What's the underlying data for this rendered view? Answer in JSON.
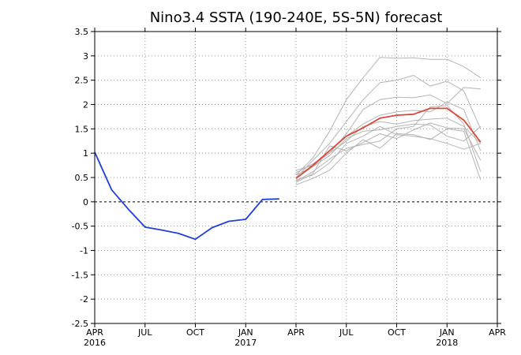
{
  "chart_data": {
    "type": "line",
    "title": "Nino3.4 SSTA (190-240E, 5S-5N) forecast",
    "xlabel": "",
    "ylabel": "",
    "ylim": [
      -2.5,
      3.5
    ],
    "yticks": [
      3.5,
      3,
      2.5,
      2,
      1.5,
      1,
      0.5,
      0,
      -0.5,
      -1,
      -1.5,
      -2,
      -2.5
    ],
    "ytick_labels": [
      "3.5",
      "3",
      "2.5",
      "2",
      "1.5",
      "1",
      "0.5",
      "0",
      "-0.5",
      "-1",
      "-1.5",
      "-2",
      "-2.5"
    ],
    "xlim": [
      "2016-04",
      "2018-04"
    ],
    "xticks": [
      {
        "month": "2016-04",
        "label": "APR",
        "year_label": "2016"
      },
      {
        "month": "2016-07",
        "label": "JUL",
        "year_label": ""
      },
      {
        "month": "2016-10",
        "label": "OCT",
        "year_label": ""
      },
      {
        "month": "2017-01",
        "label": "JAN",
        "year_label": "2017"
      },
      {
        "month": "2017-04",
        "label": "APR",
        "year_label": ""
      },
      {
        "month": "2017-07",
        "label": "JUL",
        "year_label": ""
      },
      {
        "month": "2017-10",
        "label": "OCT",
        "year_label": ""
      },
      {
        "month": "2018-01",
        "label": "JAN",
        "year_label": "2018"
      },
      {
        "month": "2018-04",
        "label": "APR",
        "year_label": ""
      }
    ],
    "grid": true,
    "zero_line": true,
    "colors": {
      "observed": "#1f3fdc",
      "members": "#b4b4b4",
      "mean": "#d9483a"
    },
    "observed": {
      "x": [
        "2016-04",
        "2016-05",
        "2016-06",
        "2016-07",
        "2016-08",
        "2016-09",
        "2016-10",
        "2016-11",
        "2016-12",
        "2017-01",
        "2017-02",
        "2017-03"
      ],
      "y": [
        1.02,
        0.25,
        -0.15,
        -0.52,
        -0.58,
        -0.65,
        -0.77,
        -0.53,
        -0.4,
        -0.36,
        0.05,
        0.06
      ]
    },
    "forecast_x": [
      "2017-04",
      "2017-05",
      "2017-06",
      "2017-07",
      "2017-08",
      "2017-09",
      "2017-10",
      "2017-11",
      "2017-12",
      "2018-01",
      "2018-02",
      "2018-03"
    ],
    "ensemble_members": [
      {
        "values": [
          0.55,
          0.9,
          1.45,
          2.1,
          2.55,
          2.97,
          2.95,
          2.96,
          2.93,
          2.93,
          2.78,
          2.55
        ]
      },
      {
        "values": [
          0.5,
          0.85,
          1.2,
          1.65,
          2.1,
          2.45,
          2.5,
          2.6,
          2.38,
          2.48,
          2.28,
          1.5
        ]
      },
      {
        "values": [
          0.6,
          0.78,
          1.0,
          1.4,
          1.9,
          2.1,
          2.15,
          2.14,
          2.2,
          2.02,
          2.35,
          2.32
        ]
      },
      {
        "values": [
          0.48,
          0.72,
          1.05,
          1.35,
          1.6,
          1.78,
          1.85,
          1.88,
          1.85,
          2.05,
          1.9,
          1.05
        ]
      },
      {
        "values": [
          0.65,
          0.75,
          1.0,
          1.25,
          1.55,
          1.65,
          1.6,
          1.67,
          1.7,
          1.72,
          1.55,
          1.2
        ]
      },
      {
        "values": [
          0.4,
          0.58,
          1.15,
          1.05,
          1.22,
          1.4,
          1.3,
          1.48,
          1.62,
          1.52,
          1.5,
          0.85
        ]
      },
      {
        "values": [
          0.45,
          0.55,
          0.8,
          1.2,
          1.35,
          1.55,
          1.38,
          1.35,
          1.3,
          1.2,
          1.08,
          1.2
        ]
      },
      {
        "values": [
          0.35,
          0.48,
          0.65,
          1.0,
          1.28,
          1.1,
          1.4,
          1.38,
          1.28,
          1.5,
          1.45,
          0.45
        ]
      },
      {
        "values": [
          0.55,
          0.72,
          0.95,
          1.3,
          1.45,
          1.48,
          1.55,
          1.6,
          1.58,
          1.35,
          1.25,
          1.55
        ]
      },
      {
        "values": [
          0.42,
          0.62,
          0.88,
          1.1,
          1.18,
          1.25,
          1.5,
          1.55,
          1.95,
          1.98,
          1.6,
          0.62
        ]
      }
    ],
    "ensemble_mean": {
      "values": [
        0.48,
        0.75,
        1.05,
        1.35,
        1.52,
        1.72,
        1.78,
        1.8,
        1.92,
        1.92,
        1.68,
        1.23
      ]
    }
  }
}
